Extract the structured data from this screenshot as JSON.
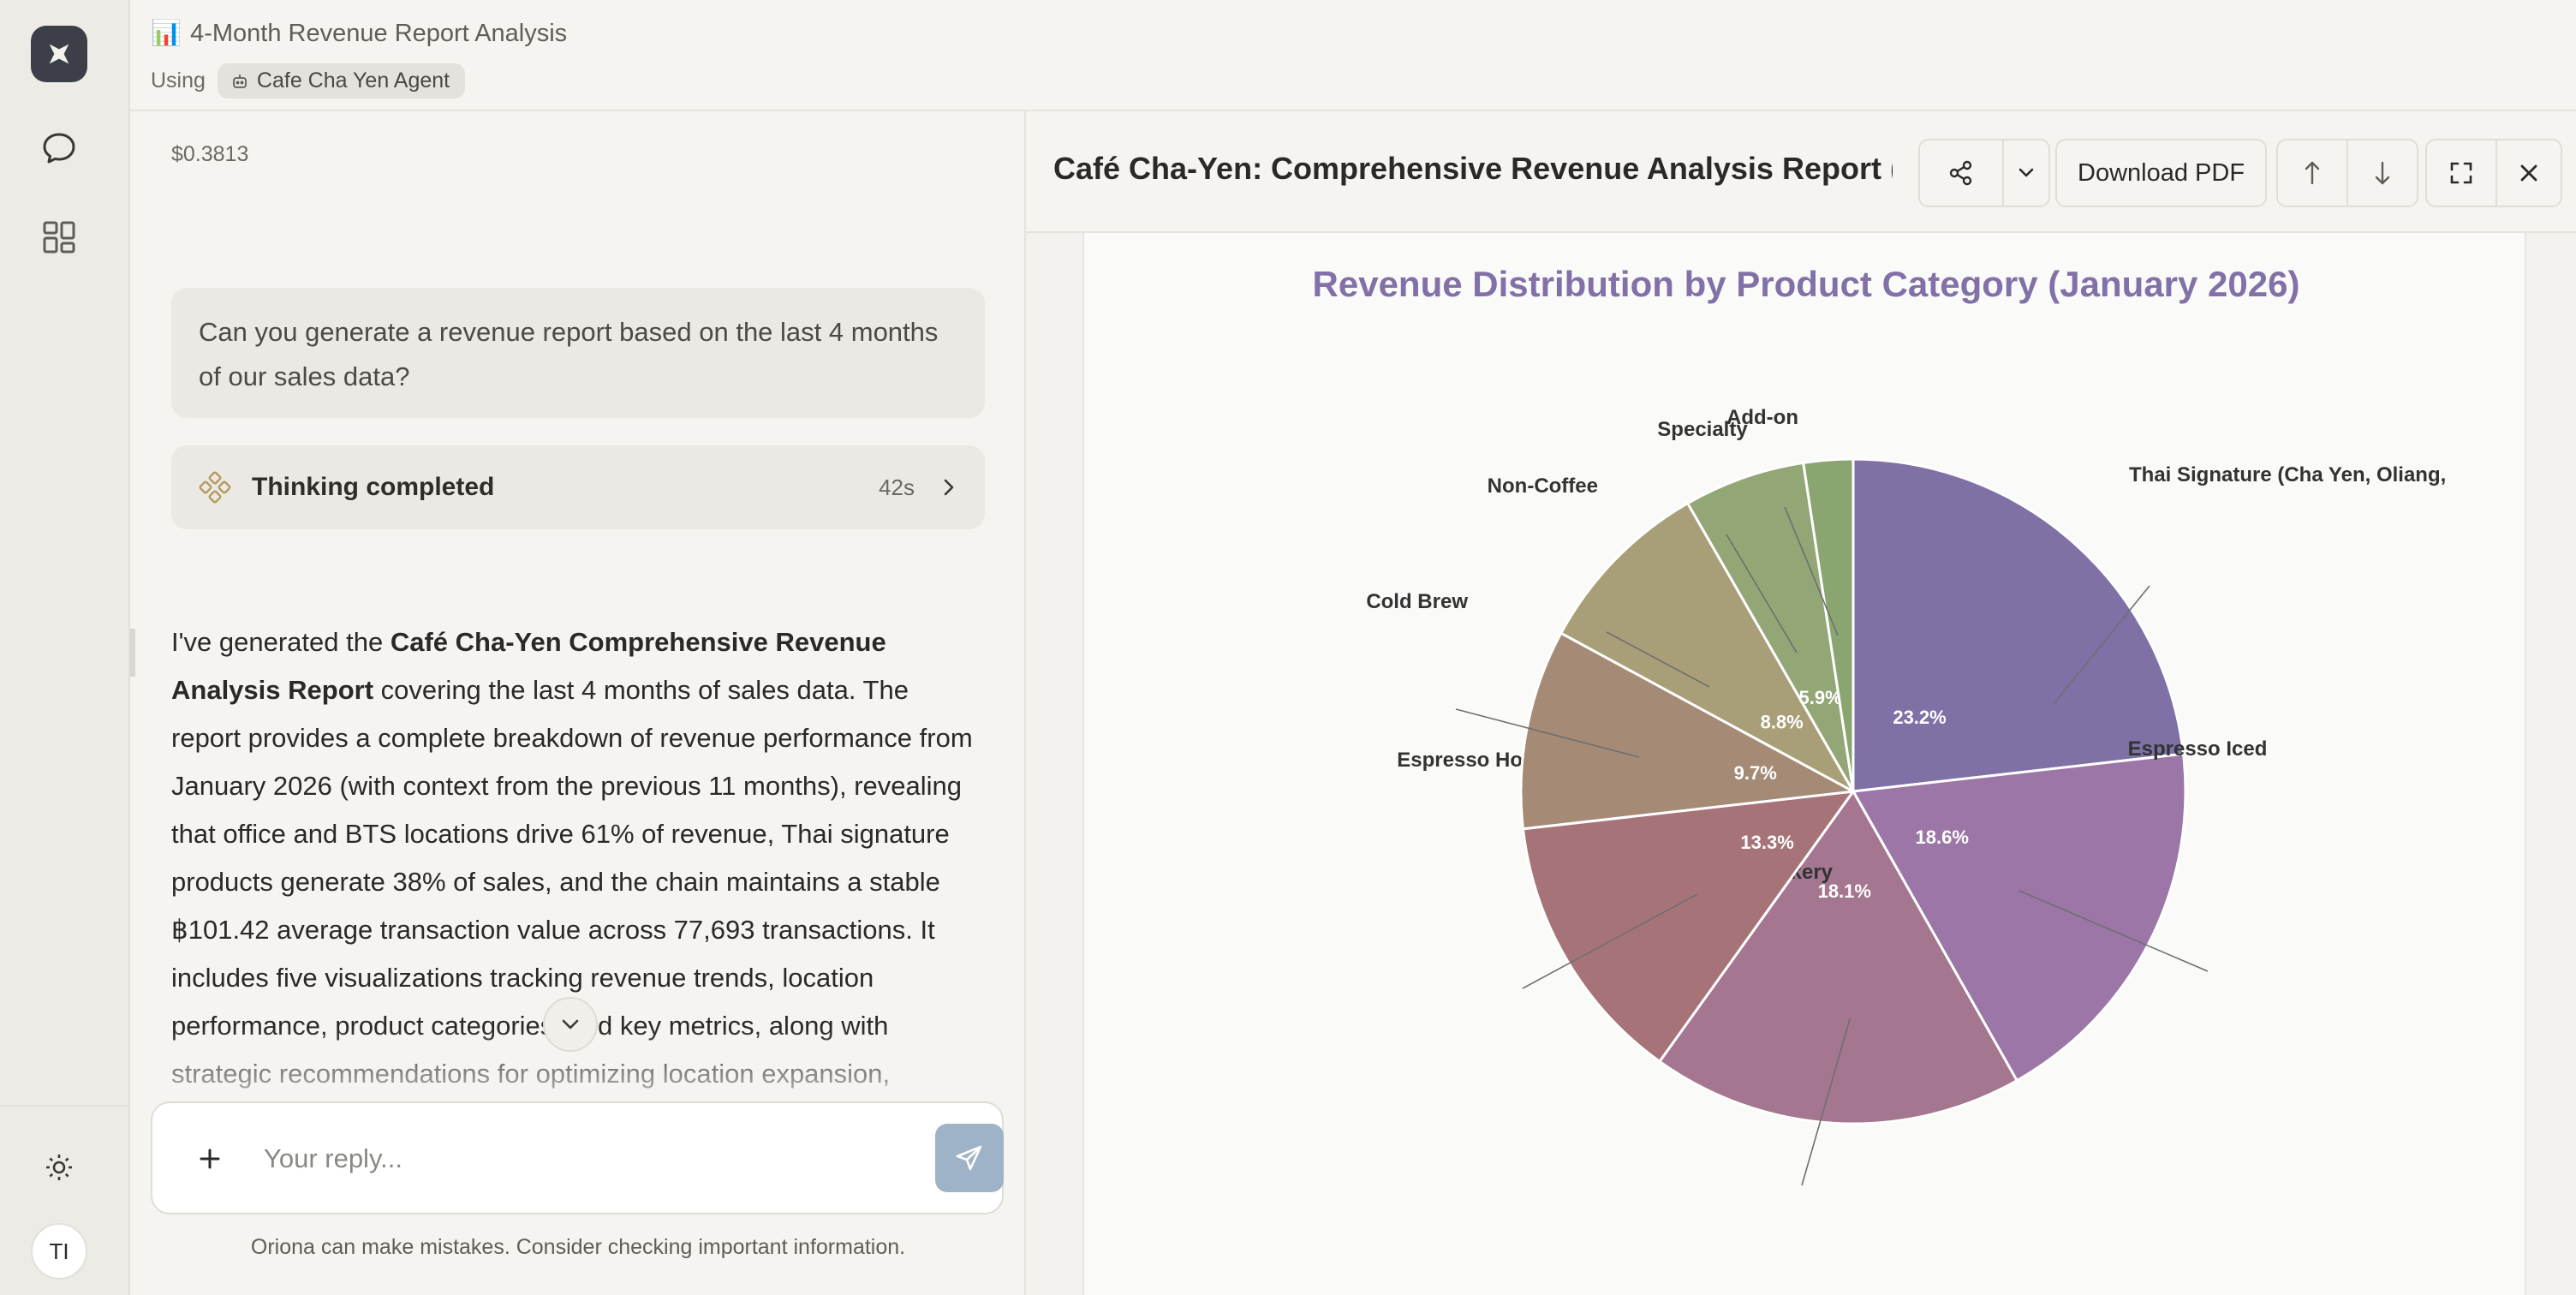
{
  "header": {
    "title_emoji": "📊",
    "title": "4-Month Revenue Report Analysis",
    "using_label": "Using",
    "agent_name": "Cafe Cha Yen Agent"
  },
  "chat": {
    "cost": "$0.3813",
    "user_message": "Can you generate a revenue report based on the last 4 months of our sales data?",
    "thinking_label": "Thinking completed",
    "thinking_time": "42s",
    "reply_intro": "I've generated the ",
    "reply_bold": "Café Cha-Yen Comprehensive Revenue Analysis Report",
    "reply_body": " covering the last 4 months of sales data. The report provides a complete breakdown of revenue performance from January 2026 (with context from the previous 11 months), revealing that office and BTS locations drive 61% of revenue, Thai signature products generate 38% of sales, and the chain maintains a stable ฿101.42 average transaction value across 77,693 transactions. It includes five visualizations tracking revenue trends, location performance, product categories, and key metrics, along with strategic recommendations for optimizing location expansion,",
    "composer_placeholder": "Your reply...",
    "disclaimer": "Oriona can make mistakes. Consider checking important information.",
    "avatar_initials": "TI"
  },
  "report": {
    "title": "Café Cha-Yen: Comprehensive Revenue Analysis Report (1...",
    "download_label": "Download PDF"
  },
  "chart_data": {
    "type": "pie",
    "title": "Revenue Distribution by Product Category (January 2026)",
    "slices": [
      {
        "label": "Thai Signature (Cha Yen, Oliang,",
        "value": 23.2,
        "color": "#7f71a6"
      },
      {
        "label": "Espresso Iced",
        "value": 18.6,
        "color": "#9b76a6"
      },
      {
        "label": "Bakery",
        "value": 18.1,
        "color": "#a4768f"
      },
      {
        "label": "Espresso Hot",
        "value": 13.3,
        "color": "#a67478"
      },
      {
        "label": "Cold Brew",
        "value": 9.7,
        "color": "#a58a76"
      },
      {
        "label": "Non-Coffee",
        "value": 8.8,
        "color": "#a89f78"
      },
      {
        "label": "Specialty",
        "value": 5.9,
        "color": "#93a676"
      },
      {
        "label": "Add-on",
        "value": 2.4,
        "color": "#8aa56f"
      }
    ],
    "value_labels": [
      "23.2%",
      "18.6%",
      "18.1%",
      "13.3%",
      "9.7%",
      "8.8%",
      "5.9%",
      ""
    ]
  }
}
